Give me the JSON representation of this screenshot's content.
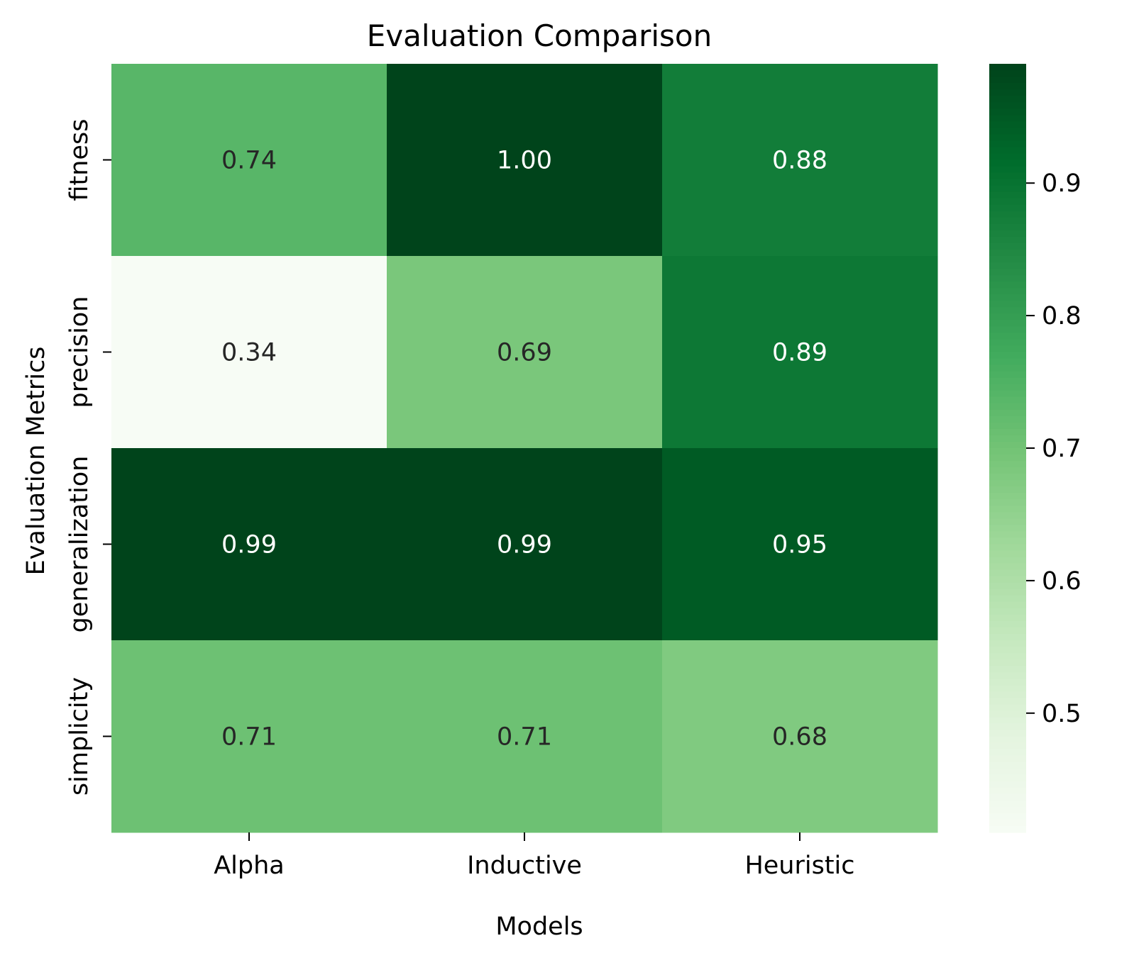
{
  "chart_data": {
    "type": "heatmap",
    "title": "Evaluation Comparison",
    "xlabel": "Models",
    "ylabel": "Evaluation Metrics",
    "x_categories": [
      "Alpha",
      "Inductive",
      "Heuristic"
    ],
    "y_categories": [
      "fitness",
      "precision",
      "generalization",
      "simplicity"
    ],
    "values": [
      [
        0.74,
        1.0,
        0.88
      ],
      [
        0.34,
        0.69,
        0.89
      ],
      [
        0.99,
        0.99,
        0.95
      ],
      [
        0.71,
        0.71,
        0.68
      ]
    ],
    "value_labels": [
      [
        "0.74",
        "1.00",
        "0.88"
      ],
      [
        "0.34",
        "0.69",
        "0.89"
      ],
      [
        "0.99",
        "0.99",
        "0.95"
      ],
      [
        "0.71",
        "0.71",
        "0.68"
      ]
    ],
    "colormap": "Greens",
    "color_range": [
      0.41,
      0.99
    ],
    "colorbar_ticks": [
      "0.5",
      "0.6",
      "0.7",
      "0.8",
      "0.9"
    ],
    "colorbar_tick_values": [
      0.5,
      0.6,
      0.7,
      0.8,
      0.9
    ]
  }
}
